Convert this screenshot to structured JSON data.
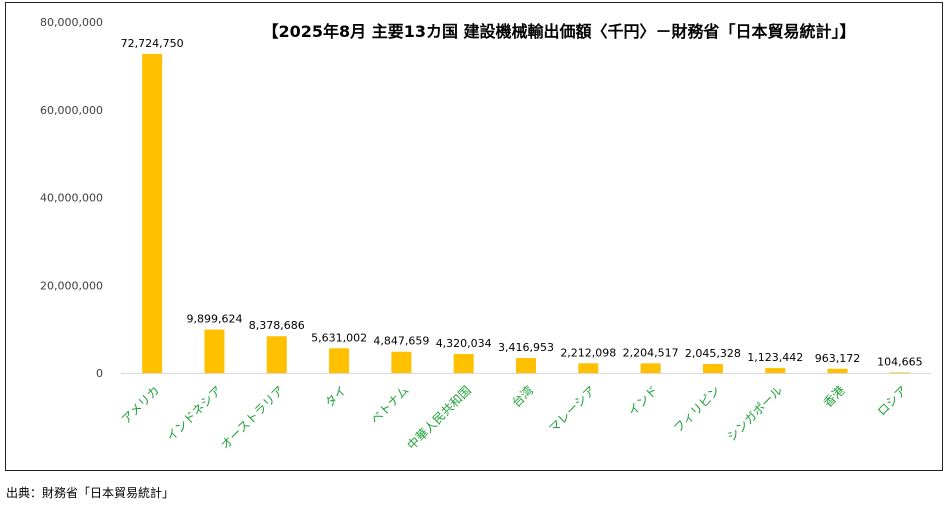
{
  "chart_data": {
    "type": "bar",
    "title": "【2025年8月 主要13カ国 建設機械輸出価額〈千円〉－財務省「日本貿易統計」】",
    "xlabel": "",
    "ylabel": "",
    "ylim": [
      0,
      80000000
    ],
    "yticks": [
      0,
      20000000,
      40000000,
      60000000,
      80000000
    ],
    "ytick_labels": [
      "0",
      "20,000,000",
      "40,000,000",
      "60,000,000",
      "80,000,000"
    ],
    "grid": false,
    "legend": "none",
    "categories": [
      "アメリカ",
      "インドネシア",
      "オーストラリア",
      "タイ",
      "ベトナム",
      "中華人民共和国",
      "台湾",
      "マレーシア",
      "インド",
      "フィリピン",
      "シンガポール",
      "香港",
      "ロシア"
    ],
    "values": [
      72724750,
      9899624,
      8378686,
      5631002,
      4847659,
      4320034,
      3416953,
      2212098,
      2204517,
      2045328,
      1123442,
      963172,
      104665
    ],
    "value_labels": [
      "72,724,750",
      "9,899,624",
      "8,378,686",
      "5,631,002",
      "4,847,659",
      "4,320,034",
      "3,416,953",
      "2,212,098",
      "2,204,517",
      "2,045,328",
      "1,123,442",
      "963,172",
      "104,665"
    ],
    "series": [
      {
        "name": "建設機械輸出価額",
        "values": [
          72724750,
          9899624,
          8378686,
          5631002,
          4847659,
          4320034,
          3416953,
          2212098,
          2204517,
          2045328,
          1123442,
          963172,
          104665
        ]
      }
    ]
  },
  "colors": {
    "bar": "#FFC000",
    "category_label": "#1FA037",
    "axis_text": "#404040",
    "title": "#000000",
    "axis_line": "#D9D9D9"
  },
  "source_note": "出典：財務省「日本貿易統計」"
}
